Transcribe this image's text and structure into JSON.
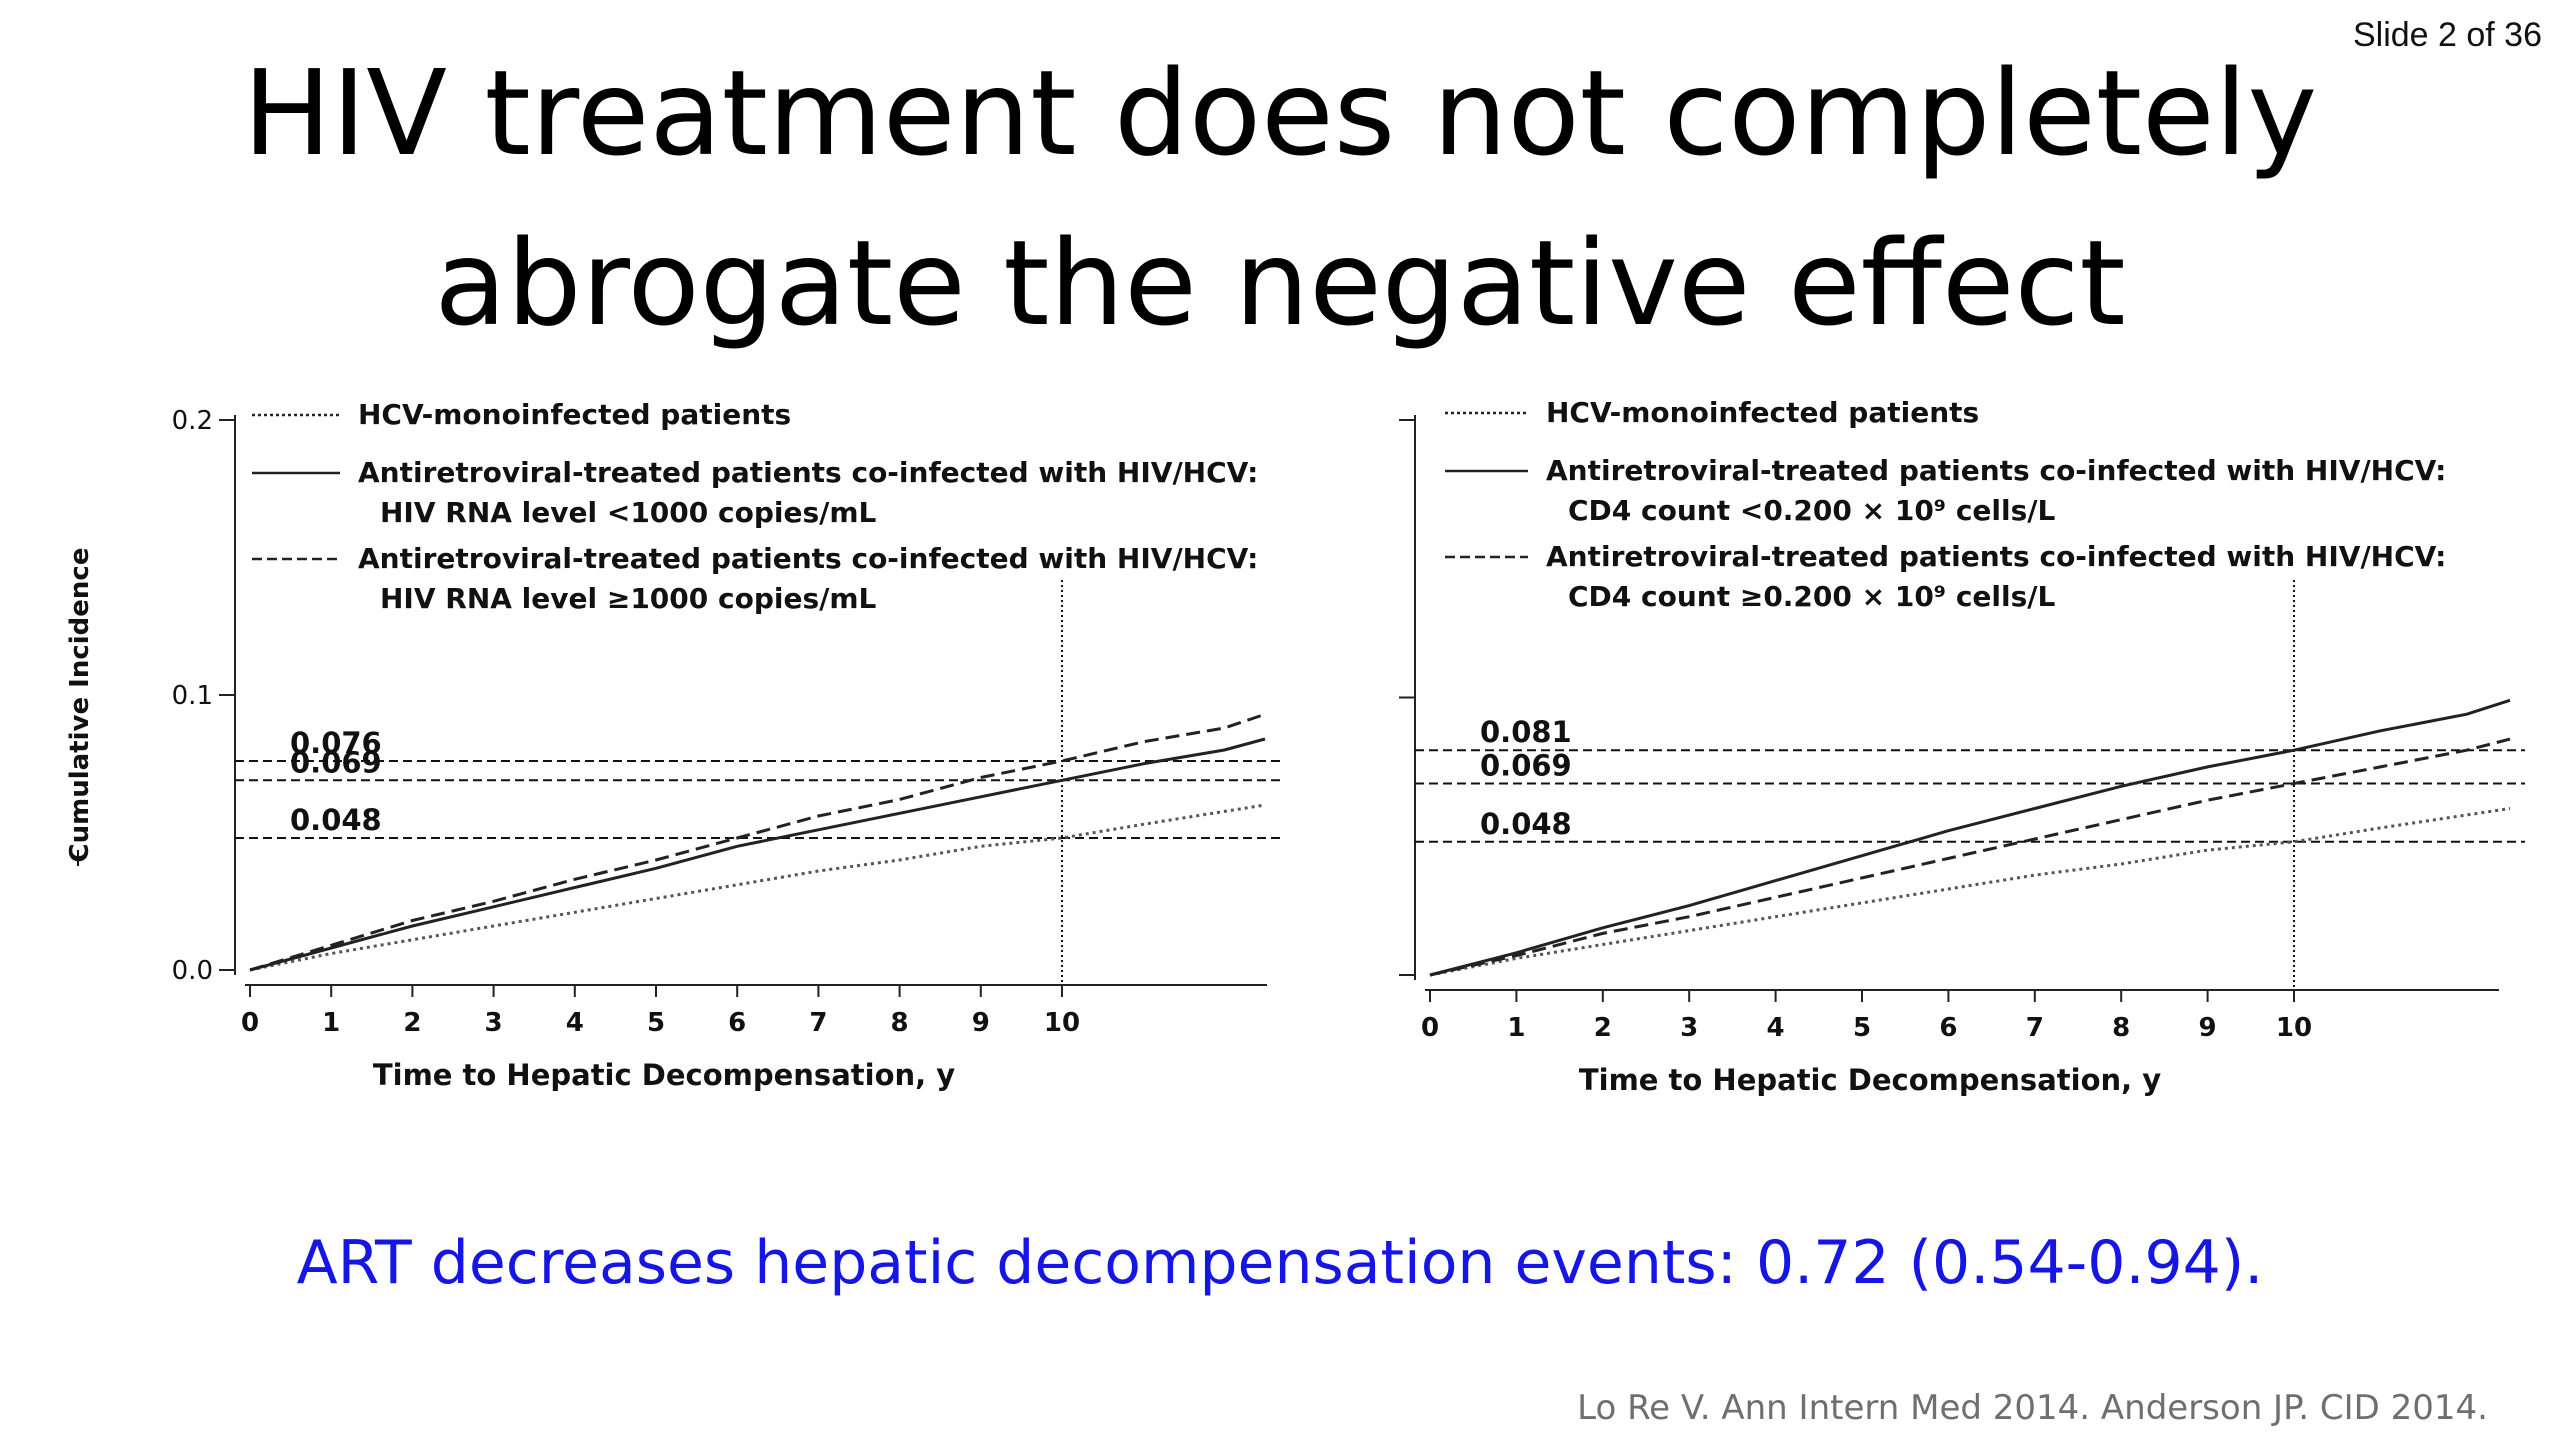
{
  "slide": {
    "counter": "Slide 2 of 36"
  },
  "title": {
    "line1": "HIV treatment does not completely",
    "line2": "abrogate the negative effect"
  },
  "chart_data": [
    {
      "type": "line",
      "xlabel": "Time to Hepatic Decompensation, y",
      "ylabel": "Cumulative Incidence",
      "x_ticks": [
        0,
        1,
        2,
        3,
        4,
        5,
        6,
        7,
        8,
        9,
        10
      ],
      "xlim": [
        0,
        12.5
      ],
      "y_ticks": [
        0.0,
        0.1,
        0.2
      ],
      "y_tick_labels": [
        "0.0",
        "0.1",
        "0.2"
      ],
      "ylim": [
        0,
        0.2
      ],
      "legend_placement": "top-left",
      "series": [
        {
          "name": "HCV-monoinfected patients",
          "style": "dotted",
          "x": [
            0,
            1,
            2,
            3,
            4,
            5,
            6,
            7,
            8,
            9,
            10,
            11,
            12.5
          ],
          "y": [
            0,
            0.006,
            0.011,
            0.016,
            0.021,
            0.026,
            0.031,
            0.036,
            0.04,
            0.045,
            0.048,
            0.053,
            0.06
          ]
        },
        {
          "name": "Antiretroviral-treated patients co-infected with HIV/HCV:",
          "name_line2": "HIV RNA level <1000 copies/mL",
          "style": "solid",
          "x": [
            0,
            1,
            2,
            3,
            4,
            5,
            6,
            7,
            8,
            9,
            10,
            11,
            12,
            12.5
          ],
          "y": [
            0,
            0.008,
            0.016,
            0.023,
            0.03,
            0.037,
            0.045,
            0.051,
            0.057,
            0.063,
            0.069,
            0.075,
            0.08,
            0.084
          ]
        },
        {
          "name": "Antiretroviral-treated patients co-infected with HIV/HCV:",
          "name_line2": "HIV RNA level ≥1000 copies/mL",
          "style": "dashed",
          "x": [
            0,
            1,
            2,
            3,
            4,
            5,
            6,
            7,
            8,
            9,
            10,
            11,
            12,
            12.5
          ],
          "y": [
            0,
            0.009,
            0.018,
            0.025,
            0.033,
            0.04,
            0.048,
            0.056,
            0.062,
            0.07,
            0.076,
            0.083,
            0.088,
            0.093
          ]
        }
      ],
      "reference_lines": {
        "horizontal": [
          0.076,
          0.069,
          0.048
        ],
        "horizontal_labels": [
          "0.076",
          "0.069",
          "0.048"
        ],
        "vertical_x": 10
      }
    },
    {
      "type": "line",
      "xlabel": "Time to Hepatic Decompensation, y",
      "ylabel": "",
      "x_ticks": [
        0,
        1,
        2,
        3,
        4,
        5,
        6,
        7,
        8,
        9,
        10
      ],
      "xlim": [
        0,
        12.5
      ],
      "y_ticks": [
        0.0,
        0.1,
        0.2
      ],
      "y_tick_labels": [],
      "ylim": [
        0,
        0.2
      ],
      "legend_placement": "top-left",
      "series": [
        {
          "name": "HCV-monoinfected patients",
          "style": "dotted",
          "x": [
            0,
            1,
            2,
            3,
            4,
            5,
            6,
            7,
            8,
            9,
            10,
            11,
            12.5
          ],
          "y": [
            0,
            0.006,
            0.011,
            0.016,
            0.021,
            0.026,
            0.031,
            0.036,
            0.04,
            0.045,
            0.048,
            0.053,
            0.06
          ]
        },
        {
          "name": "Antiretroviral-treated patients co-infected with HIV/HCV:",
          "name_line2": "CD4 count <0.200 × 10⁹ cells/L",
          "style": "solid",
          "x": [
            0,
            1,
            2,
            3,
            4,
            5,
            6,
            7,
            8,
            9,
            10,
            11,
            12,
            12.5
          ],
          "y": [
            0,
            0.008,
            0.017,
            0.025,
            0.034,
            0.043,
            0.052,
            0.06,
            0.068,
            0.075,
            0.081,
            0.088,
            0.094,
            0.099
          ]
        },
        {
          "name": "Antiretroviral-treated patients co-infected with HIV/HCV:",
          "name_line2": "CD4 count ≥0.200 × 10⁹ cells/L",
          "style": "dashed",
          "x": [
            0,
            1,
            2,
            3,
            4,
            5,
            6,
            7,
            8,
            9,
            10,
            11,
            12,
            12.5
          ],
          "y": [
            0,
            0.007,
            0.015,
            0.021,
            0.028,
            0.035,
            0.042,
            0.049,
            0.056,
            0.063,
            0.069,
            0.075,
            0.081,
            0.085
          ]
        }
      ],
      "reference_lines": {
        "horizontal": [
          0.081,
          0.069,
          0.048
        ],
        "horizontal_labels": [
          "0.081",
          "0.069",
          "0.048"
        ],
        "vertical_x": 10
      }
    }
  ],
  "caption": "ART decreases hepatic decompensation events: 0.72 (0.54-0.94).",
  "citation": "Lo Re V. Ann Intern Med 2014. Anderson JP. CID 2014."
}
